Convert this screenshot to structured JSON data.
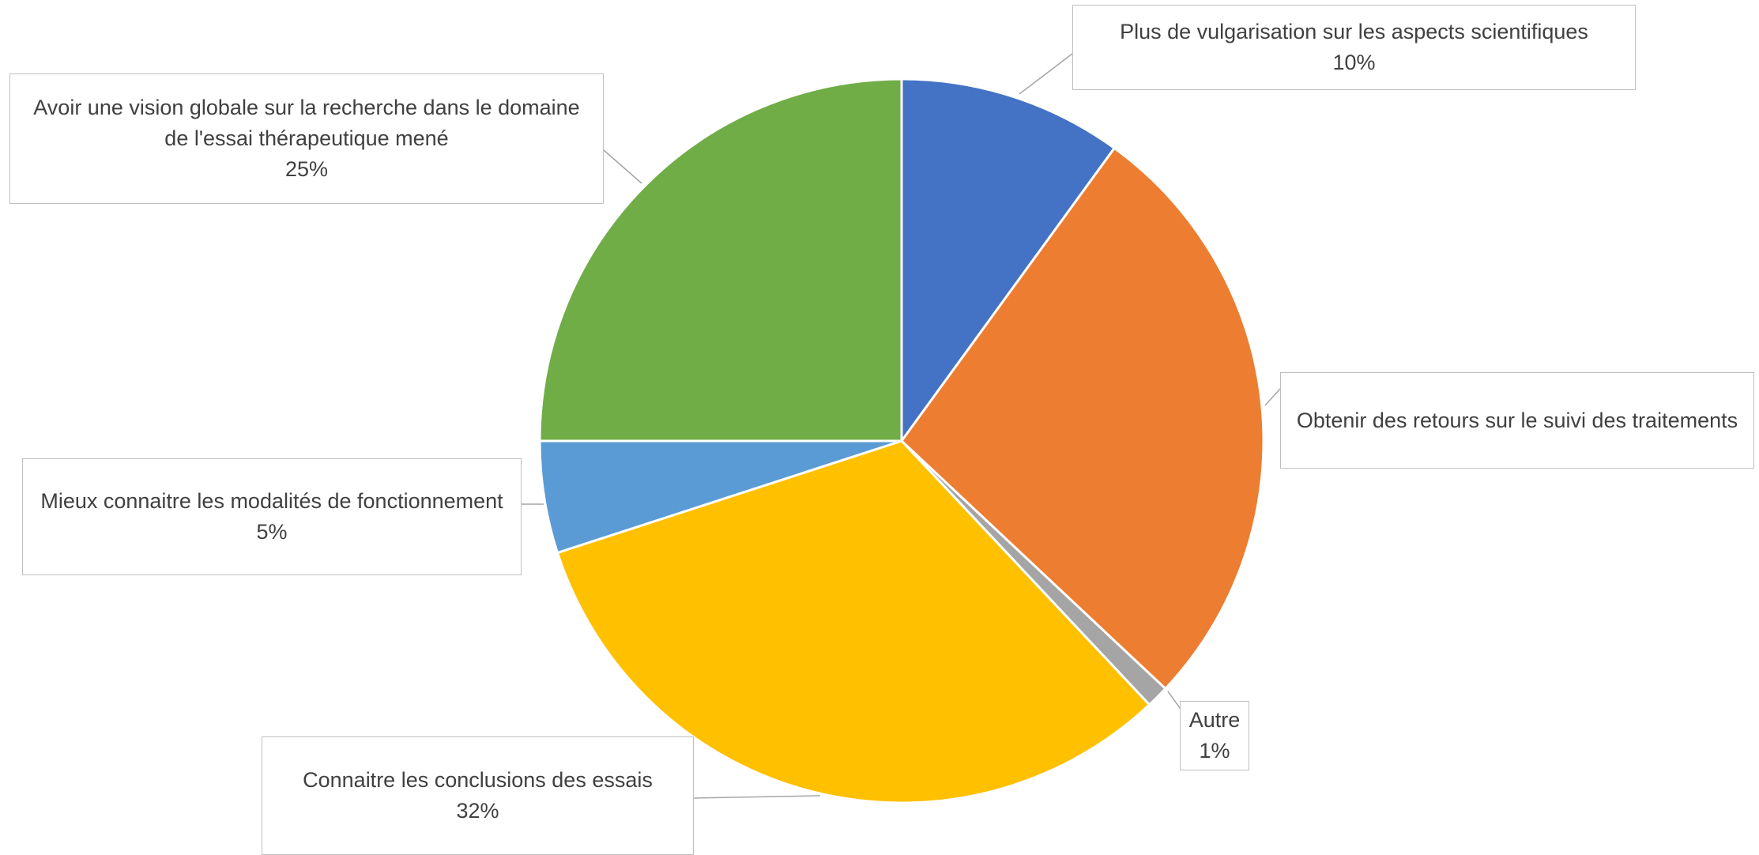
{
  "chart_data": {
    "type": "pie",
    "start_angle_deg": 0,
    "direction": "clockwise",
    "slices": [
      {
        "label": "Plus de vulgarisation sur les aspects scientifiques",
        "value": 10,
        "value_label": "10%",
        "color": "#4472C4"
      },
      {
        "label": "Obtenir des retours sur le suivi des traitements",
        "value": 27,
        "value_label": "",
        "color": "#ED7D31"
      },
      {
        "label": "Autre",
        "value": 1,
        "value_label": "1%",
        "color": "#A5A5A5"
      },
      {
        "label": "Connaitre les conclusions des essais",
        "value": 32,
        "value_label": "32%",
        "color": "#FFC000"
      },
      {
        "label": "Mieux connaitre les modalités de fonctionnement",
        "value": 5,
        "value_label": "5%",
        "color": "#5B9BD5"
      },
      {
        "label": "Avoir une vision globale sur la recherche dans le domaine de l'essai thérapeutique mené",
        "value": 25,
        "value_label": "25%",
        "color": "#70AD47"
      }
    ],
    "legend": "none",
    "data_labels": "callouts"
  }
}
